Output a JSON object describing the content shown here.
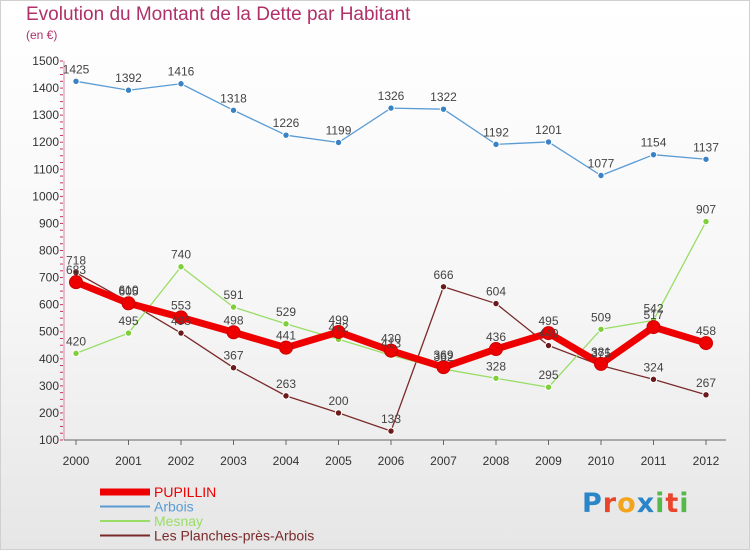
{
  "header": {
    "title": "Evolution du Montant de la Dette par Habitant",
    "subtitle": "(en €)"
  },
  "logo": {
    "letters": [
      "P",
      "r",
      "o",
      "x",
      "i",
      "t",
      "i"
    ],
    "colors": [
      "#2a86c8",
      "#e8452c",
      "#f2a51c",
      "#2a86c8",
      "#55b84a",
      "#e8452c",
      "#55b84a"
    ]
  },
  "chart_data": {
    "type": "line",
    "title": "Evolution du Montant de la Dette par Habitant",
    "subtitle": "(en €)",
    "x": [
      "2000",
      "2001",
      "2002",
      "2003",
      "2004",
      "2005",
      "2006",
      "2007",
      "2008",
      "2009",
      "2010",
      "2011",
      "2012"
    ],
    "ylim": [
      100,
      1500
    ],
    "yticks": [
      100,
      200,
      300,
      400,
      500,
      600,
      700,
      800,
      900,
      1000,
      1100,
      1200,
      1300,
      1400,
      1500
    ],
    "grid": false,
    "legend_position": "bottom-left",
    "series": [
      {
        "name": "PUPILLIN",
        "color": "#ee0000",
        "values": [
          683,
          605,
          553,
          498,
          441,
          499,
          430,
          369,
          436,
          495,
          381,
          517,
          458
        ]
      },
      {
        "name": "Arbois",
        "color": "#5a9bd4",
        "values": [
          1425,
          1392,
          1416,
          1318,
          1226,
          1199,
          1326,
          1322,
          1192,
          1201,
          1077,
          1154,
          1137
        ]
      },
      {
        "name": "Mesnay",
        "color": "#99dd66",
        "values": [
          420,
          495,
          740,
          591,
          529,
          472,
          413,
          362,
          328,
          295,
          509,
          542,
          907
        ]
      },
      {
        "name": "Les Planches-près-Arbois",
        "color": "#7a2a2a",
        "values": [
          718,
          610,
          495,
          367,
          263,
          200,
          133,
          666,
          604,
          449,
          375,
          324,
          267
        ]
      }
    ]
  }
}
